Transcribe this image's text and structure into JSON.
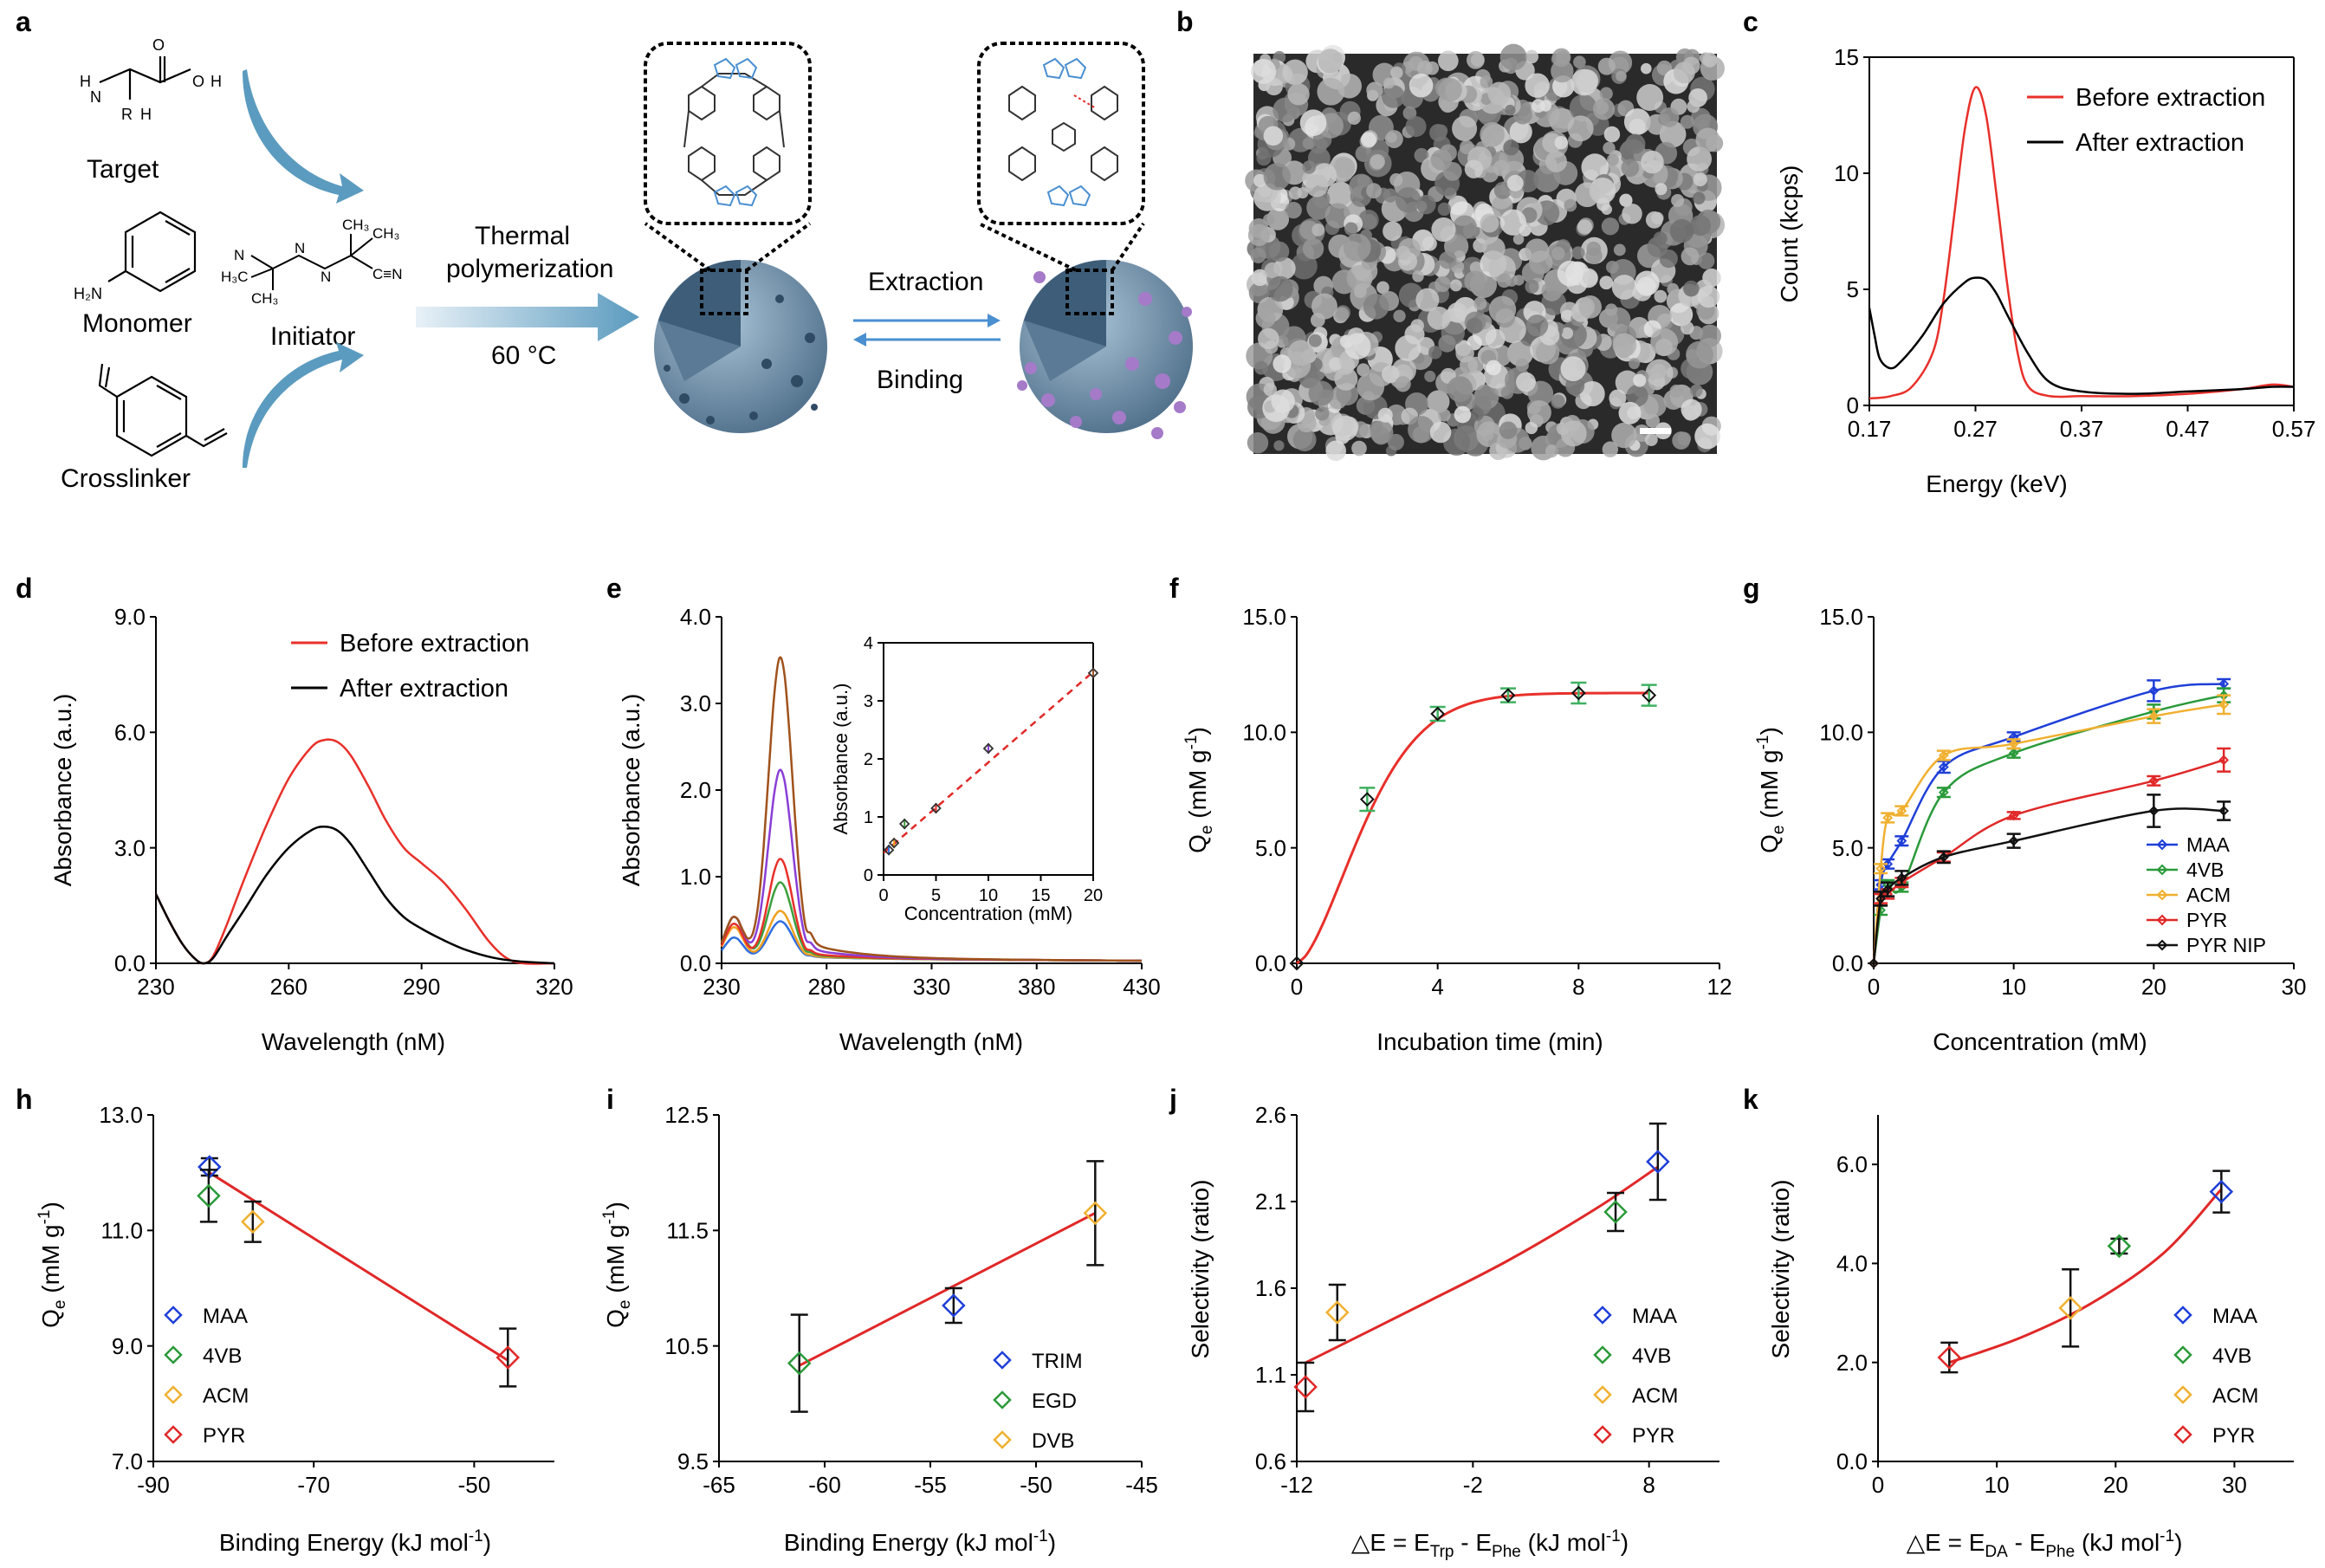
{
  "panel_letters": [
    "a",
    "b",
    "c",
    "d",
    "e",
    "f",
    "g",
    "h",
    "i",
    "j",
    "k"
  ],
  "schematic": {
    "target_label": "Target",
    "monomer_label": "Monomer",
    "crosslinker_label": "Crosslinker",
    "initiator_label": "Initiator",
    "process_label_line1": "Thermal",
    "process_label_line2": "polymerization",
    "temperature_label": "60 °C",
    "extraction_label": "Extraction",
    "binding_label": "Binding",
    "colors": {
      "arrow": "#5b9bbf",
      "sphere": "#6f8fa8",
      "purple": "#a57ac9",
      "blue_struct": "#4a8fd0"
    }
  },
  "sem_panel": {
    "scale_bar": true
  },
  "axes_text": {
    "c": {
      "xlabel": "Energy (keV)",
      "ylabel": "Count (kcps)"
    },
    "d": {
      "xlabel": "Wavelength (nM)",
      "ylabel": "Absorbance (a.u.)"
    },
    "e": {
      "xlabel": "Wavelength (nM)",
      "ylabel": "Absorbance (a.u.)",
      "inset_xlabel": "Concentration (mM)",
      "inset_ylabel": "Absorbance (a.u.)"
    },
    "f": {
      "xlabel": "Incubation time (min)",
      "ylabel_main": "Q",
      "ylabel_sub": "e",
      "ylabel_rest": " (mM g",
      "ylabel_sup": "-1",
      "ylabel_end": ")"
    },
    "g": {
      "xlabel": "Concentration (mM)",
      "ylabel_main": "Q",
      "ylabel_sub": "e",
      "ylabel_rest": " (mM g",
      "ylabel_sup": "-1",
      "ylabel_end": ")"
    },
    "h": {
      "xlabel_main": "Binding Energy (kJ mol",
      "xlabel_sup": "-1",
      "xlabel_end": ")",
      "ylabel_main": "Q",
      "ylabel_sub": "e",
      "ylabel_rest": " (mM g",
      "ylabel_sup": "-1",
      "ylabel_end": ")"
    },
    "i": {
      "xlabel_main": "Binding Energy (kJ mol",
      "xlabel_sup": "-1",
      "xlabel_end": ")",
      "ylabel_main": "Q",
      "ylabel_sub": "e",
      "ylabel_rest": " (mM g",
      "ylabel_sup": "-1",
      "ylabel_end": ")"
    },
    "j": {
      "xlabel_pre": "△E = E",
      "xlabel_sub1": "Trp",
      "xlabel_mid": " - E",
      "xlabel_sub2": "Phe",
      "xlabel_rest": " (kJ mol",
      "xlabel_sup": "-1",
      "xlabel_end": ")",
      "ylabel": "Selectivity (ratio)"
    },
    "k": {
      "xlabel_pre": "△E = E",
      "xlabel_sub1": "DA",
      "xlabel_mid": " - E",
      "xlabel_sub2": "Phe",
      "xlabel_rest": " (kJ mol",
      "xlabel_sup": "-1",
      "xlabel_end": ")",
      "ylabel": "Selectivity (ratio)"
    }
  },
  "chart_data": [
    {
      "id": "c",
      "type": "line",
      "xlabel": "Energy (keV)",
      "ylabel": "Count (kcps)",
      "xlim": [
        0.17,
        0.57
      ],
      "ylim": [
        0,
        15
      ],
      "xticks": [
        "0.17",
        "0.27",
        "0.37",
        "0.47",
        "0.57"
      ],
      "yticks": [
        "0",
        "5",
        "10",
        "15"
      ],
      "legend": "top-right",
      "series": [
        {
          "name": "Before extraction",
          "color": "#e8302a",
          "x": [
            0.17,
            0.19,
            0.21,
            0.23,
            0.24,
            0.25,
            0.26,
            0.27,
            0.28,
            0.29,
            0.3,
            0.31,
            0.32,
            0.34,
            0.37,
            0.42,
            0.47,
            0.52,
            0.55,
            0.57
          ],
          "y": [
            0.3,
            0.4,
            0.8,
            2.3,
            4.6,
            8.2,
            11.9,
            13.7,
            12.5,
            9.0,
            5.2,
            2.2,
            0.8,
            0.4,
            0.4,
            0.4,
            0.5,
            0.7,
            0.9,
            0.8
          ]
        },
        {
          "name": "After extraction",
          "color": "#000000",
          "x": [
            0.17,
            0.175,
            0.18,
            0.19,
            0.2,
            0.22,
            0.24,
            0.26,
            0.27,
            0.28,
            0.29,
            0.3,
            0.32,
            0.34,
            0.37,
            0.42,
            0.47,
            0.52,
            0.55,
            0.57
          ],
          "y": [
            4.2,
            3.0,
            2.0,
            1.6,
            1.9,
            3.0,
            4.4,
            5.3,
            5.5,
            5.4,
            4.8,
            3.9,
            2.2,
            1.0,
            0.6,
            0.5,
            0.6,
            0.7,
            0.8,
            0.8
          ]
        }
      ]
    },
    {
      "id": "d",
      "type": "line",
      "xlabel": "Wavelength (nM)",
      "ylabel": "Absorbance (a.u.)",
      "xlim": [
        230,
        320
      ],
      "ylim": [
        0,
        9
      ],
      "xticks": [
        "230",
        "260",
        "290",
        "320"
      ],
      "yticks": [
        "0.0",
        "3.0",
        "6.0",
        "9.0"
      ],
      "legend": "top-right",
      "series": [
        {
          "name": "Before extraction",
          "color": "#e8302a",
          "x": [
            230,
            233,
            236,
            239,
            241,
            243,
            246,
            250,
            255,
            260,
            265,
            268,
            271,
            274,
            278,
            282,
            286,
            290,
            295,
            300,
            305,
            309,
            313,
            320
          ],
          "y": [
            1.8,
            1.1,
            0.5,
            0.1,
            0.0,
            0.2,
            1.0,
            2.2,
            3.6,
            4.8,
            5.6,
            5.8,
            5.75,
            5.4,
            4.6,
            3.7,
            3.0,
            2.6,
            2.1,
            1.4,
            0.6,
            0.15,
            0.0,
            0.0
          ]
        },
        {
          "name": "After extraction",
          "color": "#000000",
          "x": [
            230,
            233,
            236,
            239,
            241,
            243,
            246,
            250,
            255,
            260,
            265,
            268,
            271,
            274,
            278,
            282,
            286,
            290,
            295,
            300,
            306,
            312,
            320
          ],
          "y": [
            1.8,
            1.1,
            0.5,
            0.1,
            0.0,
            0.15,
            0.7,
            1.4,
            2.3,
            3.0,
            3.45,
            3.55,
            3.45,
            3.1,
            2.4,
            1.7,
            1.2,
            0.9,
            0.6,
            0.35,
            0.15,
            0.05,
            0.0
          ]
        }
      ]
    },
    {
      "id": "e",
      "type": "line",
      "xlabel": "Wavelength (nM)",
      "ylabel": "Absorbance (a.u.)",
      "xlim": [
        230,
        430
      ],
      "ylim": [
        0,
        4
      ],
      "xticks": [
        "230",
        "280",
        "330",
        "380",
        "430"
      ],
      "yticks": [
        "0.0",
        "1.0",
        "2.0",
        "3.0",
        "4.0"
      ],
      "series": [
        {
          "color": "#2f6fe0",
          "peak": 0.43,
          "base": 0.3
        },
        {
          "color": "#f0a020",
          "peak": 0.55,
          "base": 0.45
        },
        {
          "color": "#3ca03c",
          "peak": 0.88,
          "base": 0.6
        },
        {
          "color": "#e8302a",
          "peak": 1.15,
          "base": 0.5
        },
        {
          "color": "#8a3fd6",
          "peak": 2.18,
          "base": 0.6
        },
        {
          "color": "#a0521c",
          "peak": 3.48,
          "base": 0.6
        }
      ],
      "inset": {
        "type": "scatter",
        "xlabel": "Concentration (mM)",
        "ylabel": "Absorbance (a.u.)",
        "xlim": [
          0,
          20
        ],
        "ylim": [
          0,
          4
        ],
        "xticks": [
          "0",
          "5",
          "10",
          "15",
          "20"
        ],
        "yticks": [
          "0",
          "1",
          "2",
          "3",
          "4"
        ],
        "x": [
          0.5,
          1,
          2,
          5,
          10,
          20
        ],
        "y": [
          0.43,
          0.55,
          0.88,
          1.15,
          2.18,
          3.48
        ],
        "colors": [
          "#2f6fe0",
          "#f0a020",
          "#3ca03c",
          "#e8302a",
          "#8a3fd6",
          "#a0521c"
        ],
        "fit": [
          [
            0,
            0.38
          ],
          [
            20,
            3.5
          ]
        ]
      }
    },
    {
      "id": "f",
      "type": "scatter",
      "xlabel": "Incubation time (min)",
      "xlim": [
        0,
        12
      ],
      "ylim": [
        0,
        15
      ],
      "xticks": [
        "0",
        "4",
        "8",
        "12"
      ],
      "yticks": [
        "0.0",
        "5.0",
        "10.0",
        "15.0"
      ],
      "x": [
        0,
        2,
        4,
        6,
        8,
        10
      ],
      "y": [
        0,
        7.1,
        10.8,
        11.6,
        11.7,
        11.6
      ],
      "err": [
        0,
        0.5,
        0.3,
        0.3,
        0.45,
        0.45
      ],
      "fit_color": "#e8302a"
    },
    {
      "id": "g",
      "type": "scatter",
      "xlabel": "Concentration (mM)",
      "xlim": [
        0,
        30
      ],
      "ylim": [
        0,
        15
      ],
      "xticks": [
        "0",
        "10",
        "20",
        "30"
      ],
      "yticks": [
        "0.0",
        "5.0",
        "10.0",
        "15.0"
      ],
      "legend": "right",
      "series": [
        {
          "name": "MAA",
          "color": "#1f3fd8",
          "x": [
            0,
            0.5,
            1,
            2,
            5,
            10,
            20,
            25
          ],
          "y": [
            0,
            3.4,
            4.3,
            5.3,
            8.5,
            9.8,
            11.8,
            12.1
          ],
          "err": [
            0,
            0.2,
            0.2,
            0.2,
            0.25,
            0.2,
            0.45,
            0.2
          ]
        },
        {
          "name": "4VB",
          "color": "#2a9a3a",
          "x": [
            0,
            0.5,
            1,
            2,
            5,
            10,
            20,
            25
          ],
          "y": [
            0,
            2.3,
            3.4,
            3.3,
            7.4,
            9.1,
            10.9,
            11.6
          ],
          "err": [
            0,
            0.2,
            0.2,
            0.2,
            0.2,
            0.2,
            0.3,
            0.3
          ]
        },
        {
          "name": "ACM",
          "color": "#f0b030",
          "x": [
            0,
            0.5,
            1,
            2,
            5,
            10,
            20,
            25
          ],
          "y": [
            0,
            4.1,
            6.3,
            6.6,
            9.0,
            9.5,
            10.7,
            11.2
          ],
          "err": [
            0,
            0.2,
            0.2,
            0.2,
            0.2,
            0.2,
            0.3,
            0.4
          ]
        },
        {
          "name": "PYR",
          "color": "#e02828",
          "x": [
            0,
            0.5,
            1,
            2,
            5,
            10,
            20,
            25
          ],
          "y": [
            0,
            2.8,
            3.0,
            3.5,
            4.6,
            6.4,
            7.9,
            8.8
          ],
          "err": [
            0,
            0.2,
            0.2,
            0.2,
            0.2,
            0.15,
            0.2,
            0.5
          ]
        },
        {
          "name": "PYR NIP",
          "color": "#111111",
          "x": [
            0,
            0.5,
            1,
            2,
            5,
            10,
            20,
            25
          ],
          "y": [
            0,
            2.8,
            3.2,
            3.7,
            4.6,
            5.3,
            6.6,
            6.6
          ],
          "err": [
            0,
            0.3,
            0.3,
            0.3,
            0.25,
            0.3,
            0.7,
            0.4
          ]
        }
      ]
    },
    {
      "id": "h",
      "type": "scatter",
      "xlim": [
        -90,
        -40
      ],
      "ylim": [
        7,
        13
      ],
      "xticks": [
        "-90",
        "-70",
        "-50"
      ],
      "yticks": [
        "7.0",
        "9.0",
        "11.0",
        "13.0"
      ],
      "legend": "bottom-left",
      "series": [
        {
          "name": "MAA",
          "color": "#1f3fd8",
          "x": -83.0,
          "y": 12.1,
          "err": 0.15
        },
        {
          "name": "4VB",
          "color": "#2a9a3a",
          "x": -83.1,
          "y": 11.6,
          "err": 0.45
        },
        {
          "name": "ACM",
          "color": "#f0b030",
          "x": -77.6,
          "y": 11.15,
          "err": 0.35
        },
        {
          "name": "PYR",
          "color": "#e02828",
          "x": -45.8,
          "y": 8.8,
          "err": 0.5
        }
      ],
      "fit": [
        [
          -83.0,
          12.0
        ],
        [
          -45.8,
          8.75
        ]
      ]
    },
    {
      "id": "i",
      "type": "scatter",
      "xlim": [
        -65,
        -45
      ],
      "ylim": [
        9.5,
        12.5
      ],
      "xticks": [
        "-65",
        "-60",
        "-55",
        "-50",
        "-45"
      ],
      "yticks": [
        "9.5",
        "10.5",
        "11.5",
        "12.5"
      ],
      "legend": "bottom-right",
      "series": [
        {
          "name": "TRIM",
          "color": "#1f3fd8",
          "x": -53.9,
          "y": 10.85,
          "err": 0.15
        },
        {
          "name": "EGD",
          "color": "#2a9a3a",
          "x": -61.2,
          "y": 10.35,
          "err": 0.42
        },
        {
          "name": "DVB",
          "color": "#f0b030",
          "x": -47.2,
          "y": 11.65,
          "err": 0.45
        }
      ],
      "fit": [
        [
          -61.2,
          10.33
        ],
        [
          -47.2,
          11.65
        ]
      ]
    },
    {
      "id": "j",
      "type": "scatter",
      "xlim": [
        -12,
        12
      ],
      "ylim": [
        0.6,
        2.6
      ],
      "xticks": [
        "-12",
        "-2",
        "8"
      ],
      "yticks": [
        "0.6",
        "1.1",
        "1.6",
        "2.1",
        "2.6"
      ],
      "legend": "bottom-right",
      "series": [
        {
          "name": "MAA",
          "color": "#1f3fd8",
          "x": 8.5,
          "y": 2.33,
          "err": 0.22
        },
        {
          "name": "4VB",
          "color": "#2a9a3a",
          "x": 6.1,
          "y": 2.04,
          "err": 0.11
        },
        {
          "name": "ACM",
          "color": "#f0b030",
          "x": -9.7,
          "y": 1.46,
          "err": 0.16
        },
        {
          "name": "PYR",
          "color": "#e02828",
          "x": -11.5,
          "y": 1.03,
          "err": 0.14
        }
      ],
      "fit": [
        [
          -11.5,
          1.17
        ],
        [
          -5,
          1.5
        ],
        [
          0,
          1.76
        ],
        [
          5,
          2.06
        ],
        [
          8.5,
          2.3
        ]
      ]
    },
    {
      "id": "k",
      "type": "scatter",
      "xlim": [
        0,
        35
      ],
      "ylim": [
        0,
        7
      ],
      "xticks": [
        "0",
        "10",
        "20",
        "30"
      ],
      "yticks": [
        "0.0",
        "2.0",
        "4.0",
        "6.0"
      ],
      "legend": "bottom-right",
      "series": [
        {
          "name": "MAA",
          "color": "#1f3fd8",
          "x": 28.9,
          "y": 5.45,
          "err": 0.42
        },
        {
          "name": "4VB",
          "color": "#2a9a3a",
          "x": 20.3,
          "y": 4.35,
          "err": 0.15
        },
        {
          "name": "ACM",
          "color": "#f0b030",
          "x": 16.2,
          "y": 3.1,
          "err": 0.78
        },
        {
          "name": "PYR",
          "color": "#e02828",
          "x": 6.0,
          "y": 2.1,
          "err": 0.3
        }
      ],
      "fit": [
        [
          6.0,
          2.0
        ],
        [
          12,
          2.5
        ],
        [
          18,
          3.2
        ],
        [
          24,
          4.2
        ],
        [
          28.9,
          5.5
        ]
      ]
    }
  ]
}
